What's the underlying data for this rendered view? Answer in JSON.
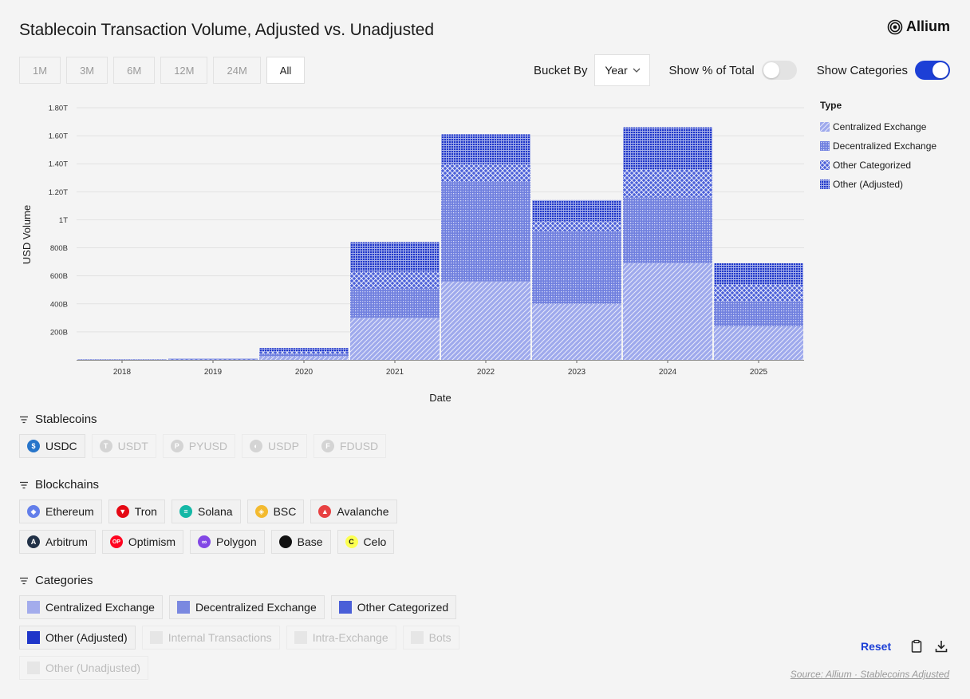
{
  "header": {
    "title": "Stablecoin Transaction Volume, Adjusted vs. Unadjusted",
    "brand": "Allium"
  },
  "time_ranges": [
    {
      "label": "1M",
      "active": false
    },
    {
      "label": "3M",
      "active": false
    },
    {
      "label": "6M",
      "active": false
    },
    {
      "label": "12M",
      "active": false
    },
    {
      "label": "24M",
      "active": false
    },
    {
      "label": "All",
      "active": true
    }
  ],
  "controls": {
    "bucket_label": "Bucket By",
    "bucket_value": "Year",
    "pct_label": "Show % of Total",
    "pct_on": false,
    "categories_label": "Show Categories",
    "categories_on": true
  },
  "chart_data": {
    "type": "bar",
    "stacked": true,
    "xlabel": "Date",
    "ylabel": "USD Volume",
    "ylim": [
      0,
      1.8
    ],
    "y_ticks": [
      {
        "v": 0.2,
        "label": "200B"
      },
      {
        "v": 0.4,
        "label": "400B"
      },
      {
        "v": 0.6,
        "label": "600B"
      },
      {
        "v": 0.8,
        "label": "800B"
      },
      {
        "v": 1.0,
        "label": "1T"
      },
      {
        "v": 1.2,
        "label": "1.20T"
      },
      {
        "v": 1.4,
        "label": "1.40T"
      },
      {
        "v": 1.6,
        "label": "1.60T"
      },
      {
        "v": 1.8,
        "label": "1.80T"
      }
    ],
    "grid": true,
    "legend_title": "Type",
    "legend_position": "right",
    "categories": [
      "2018",
      "2019",
      "2020",
      "2021",
      "2022",
      "2023",
      "2024",
      "2025"
    ],
    "series": [
      {
        "name": "Centralized Exchange",
        "color": "#9ea9ec",
        "pattern": "diagonal",
        "values": [
          0.001,
          0.004,
          0.025,
          0.3,
          0.56,
          0.4,
          0.69,
          0.24
        ]
      },
      {
        "name": "Decentralized Exchange",
        "color": "#7080df",
        "pattern": "dots",
        "values": [
          0.0005,
          0.002,
          0.02,
          0.21,
          0.71,
          0.52,
          0.47,
          0.18
        ]
      },
      {
        "name": "Other Categorized",
        "color": "#4a5fd8",
        "pattern": "crosshatch",
        "values": [
          0.0003,
          0.002,
          0.015,
          0.12,
          0.13,
          0.07,
          0.2,
          0.12
        ]
      },
      {
        "name": "Other (Adjusted)",
        "color": "#1f36c9",
        "pattern": "grid",
        "values": [
          0.0002,
          0.002,
          0.025,
          0.21,
          0.21,
          0.15,
          0.3,
          0.15
        ]
      }
    ]
  },
  "stablecoins": {
    "title": "Stablecoins",
    "items": [
      {
        "label": "USDC",
        "enabled": true,
        "color": "#2775ca",
        "icon": "usdc-icon",
        "glyph": "$"
      },
      {
        "label": "USDT",
        "enabled": false,
        "color": "#d4d4d4",
        "icon": "usdt-icon",
        "glyph": "T"
      },
      {
        "label": "PYUSD",
        "enabled": false,
        "color": "#d4d4d4",
        "icon": "pyusd-icon",
        "glyph": "P"
      },
      {
        "label": "USDP",
        "enabled": false,
        "color": "#d4d4d4",
        "icon": "usdp-icon",
        "glyph": "◐"
      },
      {
        "label": "FDUSD",
        "enabled": false,
        "color": "#d4d4d4",
        "icon": "fdusd-icon",
        "glyph": "F"
      }
    ]
  },
  "blockchains": {
    "title": "Blockchains",
    "row1": [
      {
        "label": "Ethereum",
        "color": "#627eea",
        "icon": "ethereum-icon",
        "glyph": "◆"
      },
      {
        "label": "Tron",
        "color": "#e50914",
        "icon": "tron-icon",
        "glyph": "▼"
      },
      {
        "label": "Solana",
        "color": "#14b8a6",
        "icon": "solana-icon",
        "glyph": "≡"
      },
      {
        "label": "BSC",
        "color": "#f3ba2f",
        "icon": "bsc-icon",
        "glyph": "◈"
      },
      {
        "label": "Avalanche",
        "color": "#e84142",
        "icon": "avalanche-icon",
        "glyph": "▲"
      }
    ],
    "row2": [
      {
        "label": "Arbitrum",
        "color": "#213147",
        "icon": "arbitrum-icon",
        "glyph": "A"
      },
      {
        "label": "Optimism",
        "color": "#ff0420",
        "icon": "optimism-icon",
        "glyph": "OP"
      },
      {
        "label": "Polygon",
        "color": "#8247e5",
        "icon": "polygon-icon",
        "glyph": "∞"
      },
      {
        "label": "Base",
        "color": "#111111",
        "icon": "base-icon",
        "glyph": ""
      },
      {
        "label": "Celo",
        "color": "#fcff52",
        "icon": "celo-icon",
        "glyph": "C"
      }
    ]
  },
  "categories": {
    "title": "Categories",
    "row1": [
      {
        "label": "Centralized Exchange",
        "enabled": true,
        "color": "#a3acec"
      },
      {
        "label": "Decentralized Exchange",
        "enabled": true,
        "color": "#7a88e0"
      },
      {
        "label": "Other Categorized",
        "enabled": true,
        "color": "#4a5fd8"
      }
    ],
    "row2": [
      {
        "label": "Other (Adjusted)",
        "enabled": true,
        "color": "#1f36c9"
      },
      {
        "label": "Internal Transactions",
        "enabled": false,
        "color": "#e6e6e6"
      },
      {
        "label": "Intra-Exchange",
        "enabled": false,
        "color": "#e6e6e6"
      },
      {
        "label": "Bots",
        "enabled": false,
        "color": "#e6e6e6"
      }
    ],
    "row3": [
      {
        "label": "Other (Unadjusted)",
        "enabled": false,
        "color": "#e6e6e6"
      }
    ]
  },
  "footer": {
    "reset_label": "Reset",
    "source": "Source: Allium · Stablecoins Adjusted"
  }
}
